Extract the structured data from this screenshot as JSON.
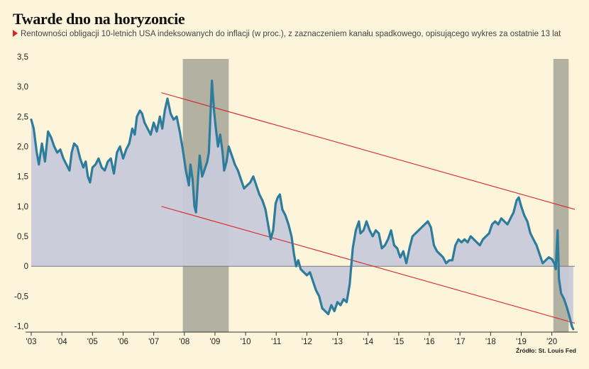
{
  "chart_data": {
    "type": "line",
    "title": "Twarde dno na horyzoncie",
    "subtitle": "Rentowności obligacji 10-letnich USA indeksowanych do inflacji (w proc.), z zaznaczeniem kanału spadkowego, opisującego wykres za ostatnie 13 lat",
    "source": "Źródło: St. Louis Fed",
    "xlabel": "",
    "ylabel": "",
    "xlim": [
      2003,
      2020.75
    ],
    "ylim": [
      -1.1,
      3.5
    ],
    "y_ticks": [
      3.5,
      3.0,
      2.5,
      2.0,
      1.5,
      1.0,
      0.5,
      0,
      -0.5,
      -1.0
    ],
    "y_tick_labels": [
      "3,5",
      "3,0",
      "2,5",
      "2,0",
      "1,5",
      "1,0",
      "0,5",
      "0",
      "-0,5",
      "-1,0"
    ],
    "x_ticks": [
      2003,
      2004,
      2005,
      2006,
      2007,
      2008,
      2009,
      2010,
      2011,
      2012,
      2013,
      2014,
      2015,
      2016,
      2017,
      2018,
      2019,
      2020
    ],
    "x_tick_labels": [
      "'03",
      "'04",
      "'05",
      "'06",
      "'07",
      "'08",
      "'09",
      "'10",
      "'11",
      "'12",
      "'13",
      "'14",
      "'15",
      "'16",
      "'17",
      "'18",
      "'19",
      "'20"
    ],
    "recessions": [
      [
        2007.95,
        2009.45
      ],
      [
        2020.05,
        2020.55
      ]
    ],
    "channel_lines": [
      {
        "x": [
          2007.25,
          2020.75
        ],
        "y": [
          2.9,
          0.95
        ]
      },
      {
        "x": [
          2007.25,
          2020.75
        ],
        "y": [
          1.0,
          -0.95
        ]
      }
    ],
    "colors": {
      "series_line": "#2e7c9b",
      "area_fill": "#c8cbd9",
      "recession_band": "#b3b1a1",
      "channel_line": "#d9262b",
      "zero_line": "#777777",
      "background": "#fdf4dc"
    },
    "series": [
      {
        "values": [
          [
            2003.0,
            2.45
          ],
          [
            2003.08,
            2.3
          ],
          [
            2003.18,
            1.9
          ],
          [
            2003.25,
            1.7
          ],
          [
            2003.35,
            2.05
          ],
          [
            2003.45,
            1.75
          ],
          [
            2003.55,
            2.25
          ],
          [
            2003.65,
            2.15
          ],
          [
            2003.75,
            2.0
          ],
          [
            2003.85,
            1.9
          ],
          [
            2003.95,
            1.95
          ],
          [
            2004.05,
            1.8
          ],
          [
            2004.15,
            1.7
          ],
          [
            2004.25,
            1.6
          ],
          [
            2004.32,
            1.9
          ],
          [
            2004.4,
            2.05
          ],
          [
            2004.5,
            2.0
          ],
          [
            2004.6,
            1.8
          ],
          [
            2004.7,
            1.65
          ],
          [
            2004.78,
            1.75
          ],
          [
            2004.85,
            1.5
          ],
          [
            2004.92,
            1.4
          ],
          [
            2005.0,
            1.65
          ],
          [
            2005.1,
            1.7
          ],
          [
            2005.2,
            1.8
          ],
          [
            2005.3,
            1.65
          ],
          [
            2005.4,
            1.6
          ],
          [
            2005.5,
            1.75
          ],
          [
            2005.6,
            1.8
          ],
          [
            2005.7,
            1.55
          ],
          [
            2005.8,
            1.9
          ],
          [
            2005.9,
            2.0
          ],
          [
            2006.0,
            1.8
          ],
          [
            2006.1,
            1.95
          ],
          [
            2006.2,
            2.05
          ],
          [
            2006.3,
            2.3
          ],
          [
            2006.38,
            2.2
          ],
          [
            2006.45,
            2.5
          ],
          [
            2006.55,
            2.6
          ],
          [
            2006.62,
            2.55
          ],
          [
            2006.7,
            2.4
          ],
          [
            2006.8,
            2.3
          ],
          [
            2006.9,
            2.2
          ],
          [
            2007.0,
            2.4
          ],
          [
            2007.1,
            2.25
          ],
          [
            2007.2,
            2.5
          ],
          [
            2007.28,
            2.3
          ],
          [
            2007.36,
            2.6
          ],
          [
            2007.45,
            2.8
          ],
          [
            2007.55,
            2.55
          ],
          [
            2007.65,
            2.45
          ],
          [
            2007.75,
            2.5
          ],
          [
            2007.85,
            2.25
          ],
          [
            2007.95,
            1.95
          ],
          [
            2008.05,
            1.6
          ],
          [
            2008.15,
            1.35
          ],
          [
            2008.2,
            1.7
          ],
          [
            2008.27,
            1.45
          ],
          [
            2008.33,
            1.0
          ],
          [
            2008.38,
            0.9
          ],
          [
            2008.45,
            1.5
          ],
          [
            2008.5,
            1.85
          ],
          [
            2008.58,
            1.5
          ],
          [
            2008.65,
            1.6
          ],
          [
            2008.75,
            1.75
          ],
          [
            2008.8,
            1.9
          ],
          [
            2008.85,
            2.5
          ],
          [
            2008.9,
            3.1
          ],
          [
            2008.97,
            2.6
          ],
          [
            2009.03,
            2.3
          ],
          [
            2009.1,
            2.0
          ],
          [
            2009.17,
            2.2
          ],
          [
            2009.25,
            1.9
          ],
          [
            2009.3,
            1.6
          ],
          [
            2009.38,
            1.75
          ],
          [
            2009.45,
            2.0
          ],
          [
            2009.55,
            1.85
          ],
          [
            2009.65,
            1.7
          ],
          [
            2009.75,
            1.6
          ],
          [
            2009.85,
            1.45
          ],
          [
            2009.95,
            1.3
          ],
          [
            2010.05,
            1.35
          ],
          [
            2010.15,
            1.4
          ],
          [
            2010.25,
            1.5
          ],
          [
            2010.35,
            1.35
          ],
          [
            2010.45,
            1.2
          ],
          [
            2010.55,
            1.1
          ],
          [
            2010.65,
            0.95
          ],
          [
            2010.75,
            0.65
          ],
          [
            2010.82,
            0.45
          ],
          [
            2010.9,
            0.6
          ],
          [
            2010.98,
            1.05
          ],
          [
            2011.05,
            1.15
          ],
          [
            2011.12,
            1.2
          ],
          [
            2011.2,
            0.95
          ],
          [
            2011.3,
            0.85
          ],
          [
            2011.4,
            0.7
          ],
          [
            2011.5,
            0.5
          ],
          [
            2011.58,
            0.2
          ],
          [
            2011.65,
            0.0
          ],
          [
            2011.72,
            0.1
          ],
          [
            2011.8,
            -0.05
          ],
          [
            2011.9,
            -0.1
          ],
          [
            2012.0,
            -0.15
          ],
          [
            2012.1,
            -0.1
          ],
          [
            2012.2,
            -0.25
          ],
          [
            2012.3,
            -0.4
          ],
          [
            2012.4,
            -0.5
          ],
          [
            2012.5,
            -0.7
          ],
          [
            2012.6,
            -0.75
          ],
          [
            2012.7,
            -0.8
          ],
          [
            2012.8,
            -0.65
          ],
          [
            2012.9,
            -0.75
          ],
          [
            2013.0,
            -0.6
          ],
          [
            2013.1,
            -0.65
          ],
          [
            2013.2,
            -0.55
          ],
          [
            2013.3,
            -0.6
          ],
          [
            2013.4,
            -0.3
          ],
          [
            2013.5,
            0.3
          ],
          [
            2013.6,
            0.6
          ],
          [
            2013.7,
            0.75
          ],
          [
            2013.75,
            0.55
          ],
          [
            2013.85,
            0.6
          ],
          [
            2013.95,
            0.75
          ],
          [
            2014.05,
            0.6
          ],
          [
            2014.15,
            0.5
          ],
          [
            2014.25,
            0.6
          ],
          [
            2014.35,
            0.55
          ],
          [
            2014.45,
            0.3
          ],
          [
            2014.55,
            0.35
          ],
          [
            2014.65,
            0.45
          ],
          [
            2014.75,
            0.6
          ],
          [
            2014.85,
            0.35
          ],
          [
            2014.95,
            0.3
          ],
          [
            2015.05,
            0.15
          ],
          [
            2015.15,
            0.25
          ],
          [
            2015.25,
            0.05
          ],
          [
            2015.35,
            0.3
          ],
          [
            2015.45,
            0.5
          ],
          [
            2015.55,
            0.55
          ],
          [
            2015.65,
            0.6
          ],
          [
            2015.75,
            0.65
          ],
          [
            2015.85,
            0.7
          ],
          [
            2015.95,
            0.75
          ],
          [
            2016.05,
            0.65
          ],
          [
            2016.15,
            0.35
          ],
          [
            2016.25,
            0.25
          ],
          [
            2016.35,
            0.2
          ],
          [
            2016.45,
            0.15
          ],
          [
            2016.55,
            0.05
          ],
          [
            2016.65,
            0.1
          ],
          [
            2016.75,
            0.1
          ],
          [
            2016.85,
            0.35
          ],
          [
            2016.95,
            0.45
          ],
          [
            2017.05,
            0.4
          ],
          [
            2017.15,
            0.45
          ],
          [
            2017.25,
            0.4
          ],
          [
            2017.35,
            0.5
          ],
          [
            2017.45,
            0.45
          ],
          [
            2017.55,
            0.4
          ],
          [
            2017.65,
            0.35
          ],
          [
            2017.75,
            0.45
          ],
          [
            2017.85,
            0.5
          ],
          [
            2017.95,
            0.55
          ],
          [
            2018.05,
            0.7
          ],
          [
            2018.15,
            0.75
          ],
          [
            2018.25,
            0.7
          ],
          [
            2018.35,
            0.8
          ],
          [
            2018.45,
            0.75
          ],
          [
            2018.55,
            0.7
          ],
          [
            2018.65,
            0.8
          ],
          [
            2018.75,
            0.9
          ],
          [
            2018.85,
            1.1
          ],
          [
            2018.92,
            1.15
          ],
          [
            2019.0,
            1.0
          ],
          [
            2019.1,
            0.85
          ],
          [
            2019.2,
            0.75
          ],
          [
            2019.3,
            0.55
          ],
          [
            2019.4,
            0.45
          ],
          [
            2019.5,
            0.35
          ],
          [
            2019.6,
            0.2
          ],
          [
            2019.7,
            0.05
          ],
          [
            2019.8,
            0.1
          ],
          [
            2019.9,
            0.15
          ],
          [
            2020.0,
            0.12
          ],
          [
            2020.08,
            0.05
          ],
          [
            2020.13,
            -0.05
          ],
          [
            2020.16,
            0.3
          ],
          [
            2020.19,
            0.6
          ],
          [
            2020.23,
            -0.2
          ],
          [
            2020.3,
            -0.45
          ],
          [
            2020.4,
            -0.55
          ],
          [
            2020.5,
            -0.7
          ],
          [
            2020.58,
            -0.85
          ],
          [
            2020.65,
            -1.0
          ],
          [
            2020.7,
            -1.05
          ]
        ]
      }
    ]
  }
}
